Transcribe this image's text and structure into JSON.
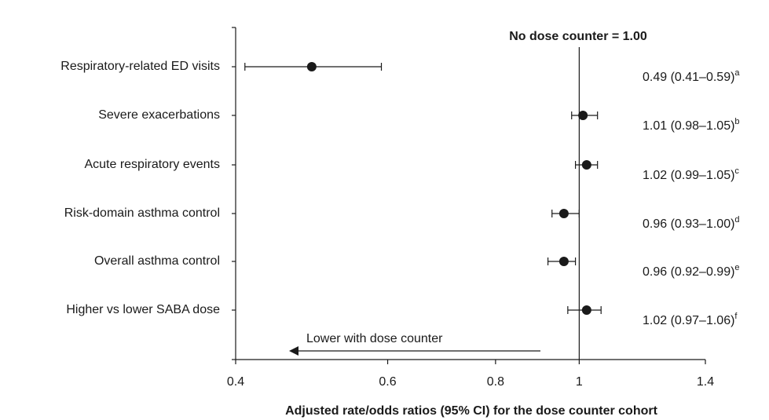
{
  "chart_data": {
    "type": "forest",
    "xlabel": "Adjusted rate/odds ratios (95% CI) for the dose counter cohort",
    "categories": [
      "Respiratory-related ED visits",
      "Severe exacerbations",
      "Acute respiratory events",
      "Risk-domain asthma control",
      "Overall asthma control",
      "Higher vs lower SABA dose"
    ],
    "series": [
      {
        "color": "#1a1a1a",
        "values": [
          0.49,
          1.01,
          1.02,
          0.96,
          0.96,
          1.02
        ],
        "lower": [
          0.41,
          0.98,
          0.99,
          0.93,
          0.92,
          0.97
        ],
        "upper": [
          0.59,
          1.05,
          1.05,
          1.0,
          0.99,
          1.06
        ],
        "value_labels": [
          "0.49 (0.41–0.59)",
          "1.01 (0.98–1.05)",
          "1.02 (0.99–1.05)",
          "0.96 (0.93–1.00)",
          "0.96 (0.92–0.99)",
          "1.02 (0.97–1.06)"
        ],
        "footnotes": [
          "a",
          "b",
          "c",
          "d",
          "e",
          "f"
        ]
      }
    ],
    "xlim": [
      0.4,
      1.4
    ],
    "xticks": [
      0.4,
      0.6,
      0.8,
      1,
      1.4
    ],
    "log_x": true,
    "reference_line": 1,
    "reference_label": "No dose counter = 1.00",
    "annotation": "Lower with dose counter"
  }
}
